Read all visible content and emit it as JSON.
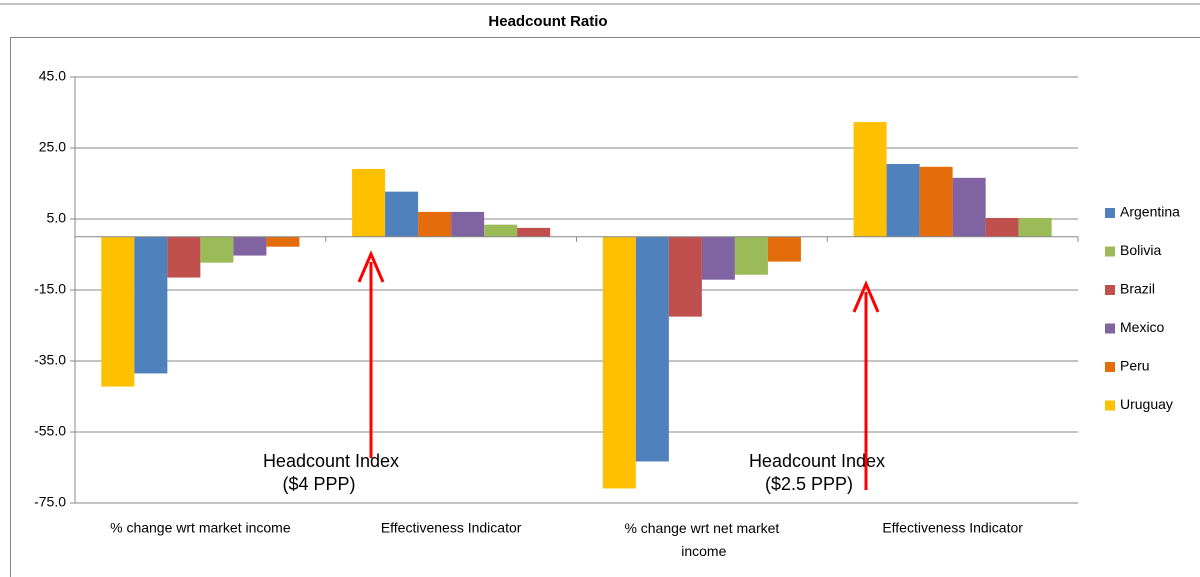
{
  "chart_data": {
    "type": "bar",
    "title": "Headcount Ratio",
    "categories": [
      "% change wrt market income",
      "Effectiveness Indicator",
      "% change wrt net market income",
      "Effectiveness Indicator"
    ],
    "series": [
      {
        "values": [
          -42.2,
          19.1,
          -70.9,
          32.3
        ],
        "colors": [
          "#ffc000",
          "#ffc000",
          "#ffc000",
          "#ffc000"
        ]
      },
      {
        "values": [
          -38.5,
          12.7,
          -63.3,
          20.5
        ],
        "colors": [
          "#4f81bd",
          "#4f81bd",
          "#4f81bd",
          "#4f81bd"
        ]
      },
      {
        "values": [
          -11.5,
          7,
          -22.5,
          19.7
        ],
        "colors": [
          "#c0504d",
          "#e46c0a",
          "#c0504d",
          "#e46c0a"
        ]
      },
      {
        "values": [
          -7.3,
          7,
          -12.1,
          16.6
        ],
        "colors": [
          "#9bbb59",
          "#8064a2",
          "#8064a2",
          "#8064a2"
        ]
      },
      {
        "values": [
          -5.3,
          3.4,
          -10.7,
          5.3
        ],
        "colors": [
          "#8064a2",
          "#9bbb59",
          "#9bbb59",
          "#c0504d"
        ]
      },
      {
        "values": [
          -2.8,
          2.5,
          -7,
          5.3
        ],
        "colors": [
          "#e46c0a",
          "#c0504d",
          "#e46c0a",
          "#9bbb59"
        ]
      }
    ],
    "legend": [
      {
        "name": "Argentina",
        "color": "#4f81bd"
      },
      {
        "name": "Bolivia",
        "color": "#9bbb59"
      },
      {
        "name": "Brazil",
        "color": "#c0504d"
      },
      {
        "name": "Mexico",
        "color": "#8064a2"
      },
      {
        "name": "Peru",
        "color": "#e46c0a"
      },
      {
        "name": "Uruguay",
        "color": "#ffc000"
      }
    ],
    "annotations": [
      [
        "Headcount Index",
        "($4 PPP)"
      ],
      [
        "Headcount Index",
        "($2.5 PPP)"
      ]
    ],
    "ylim": [
      -75,
      45
    ],
    "yticks": [
      {
        "value": -75,
        "label": "-75.0"
      },
      {
        "value": -55,
        "label": "-55.0"
      },
      {
        "value": -35,
        "label": "-35.0"
      },
      {
        "value": -15,
        "label": "-15.0"
      },
      {
        "value": 5,
        "label": "5.0"
      },
      {
        "value": 25,
        "label": "25.0"
      },
      {
        "value": 45,
        "label": "45.0"
      }
    ],
    "grid": true
  }
}
